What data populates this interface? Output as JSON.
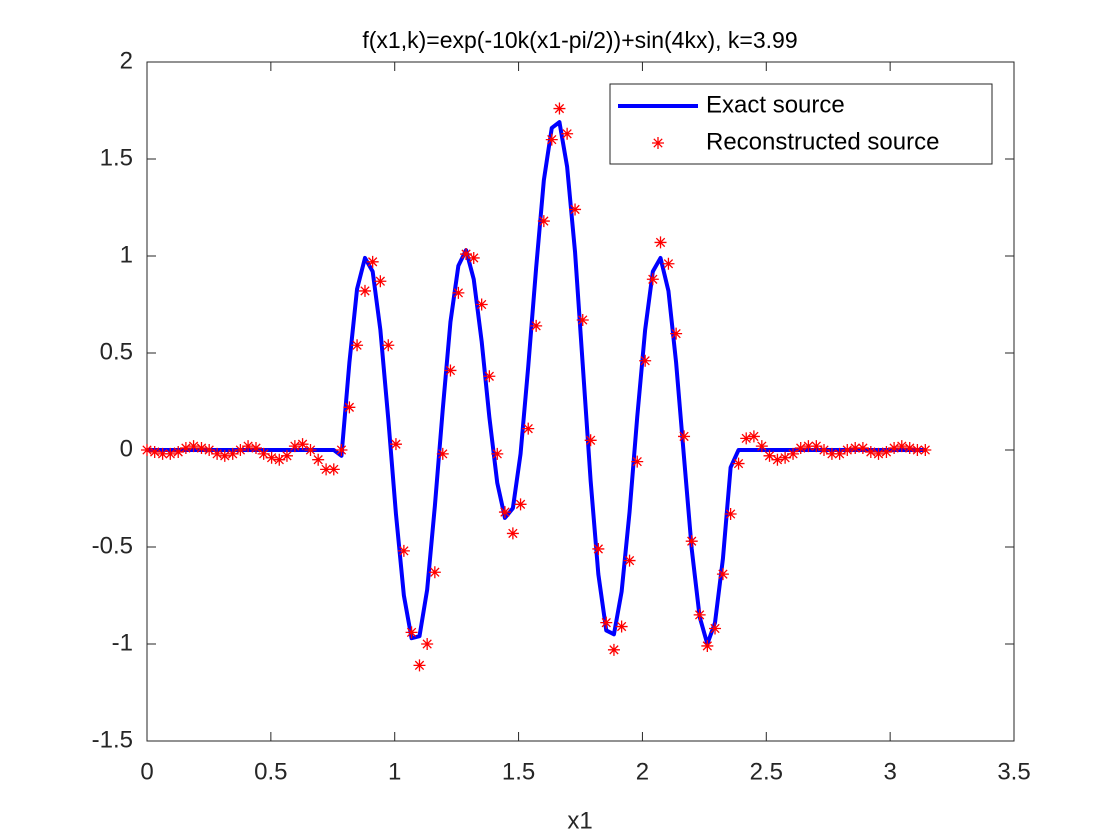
{
  "chart_data": {
    "type": "line",
    "title": "f(x1,k)=exp(-10k(x1-pi/2))+sin(4kx),   k=3.99",
    "x_label": "x1",
    "xlim": [
      0,
      3.5
    ],
    "xticks": [
      0,
      0.5,
      1,
      1.5,
      2,
      2.5,
      3,
      3.5
    ],
    "ylim": [
      -1.5,
      2
    ],
    "yticks": [
      -1.5,
      -1,
      -0.5,
      0,
      0.5,
      1,
      1.5,
      2
    ],
    "grid": false,
    "legend_position": "top-right",
    "series": [
      {
        "name": "Exact source",
        "color": "#0000ff",
        "style": "line",
        "x": [
          0,
          0.754,
          0.785,
          0.817,
          0.848,
          0.88,
          0.911,
          0.942,
          0.974,
          1.005,
          1.037,
          1.068,
          1.1,
          1.131,
          1.162,
          1.194,
          1.225,
          1.257,
          1.288,
          1.319,
          1.351,
          1.382,
          1.414,
          1.445,
          1.477,
          1.508,
          1.539,
          1.571,
          1.602,
          1.634,
          1.665,
          1.696,
          1.728,
          1.759,
          1.791,
          1.822,
          1.854,
          1.885,
          1.916,
          1.948,
          1.979,
          2.011,
          2.042,
          2.073,
          2.105,
          2.136,
          2.168,
          2.199,
          2.231,
          2.262,
          2.293,
          2.325,
          2.356,
          2.388,
          3.142
        ],
        "values": [
          0,
          0,
          -0.03,
          0.45,
          0.83,
          0.99,
          0.92,
          0.62,
          0.16,
          -0.33,
          -0.75,
          -0.97,
          -0.96,
          -0.72,
          -0.29,
          0.21,
          0.66,
          0.95,
          1.03,
          0.88,
          0.56,
          0.17,
          -0.17,
          -0.35,
          -0.3,
          -0.02,
          0.43,
          0.94,
          1.39,
          1.66,
          1.69,
          1.46,
          1.02,
          0.44,
          -0.16,
          -0.64,
          -0.93,
          -0.95,
          -0.73,
          -0.32,
          0.17,
          0.62,
          0.92,
          0.99,
          0.82,
          0.45,
          -0.04,
          -0.51,
          -0.86,
          -1.0,
          -0.89,
          -0.56,
          -0.09,
          0,
          0
        ]
      },
      {
        "name": "Reconstructed source",
        "color": "#ff0000",
        "style": "markers",
        "x": [
          0,
          0.031,
          0.063,
          0.094,
          0.126,
          0.157,
          0.188,
          0.22,
          0.251,
          0.283,
          0.314,
          0.346,
          0.377,
          0.408,
          0.44,
          0.471,
          0.503,
          0.534,
          0.565,
          0.597,
          0.628,
          0.66,
          0.691,
          0.723,
          0.754,
          0.785,
          0.817,
          0.848,
          0.88,
          0.911,
          0.942,
          0.974,
          1.005,
          1.037,
          1.068,
          1.1,
          1.131,
          1.162,
          1.194,
          1.225,
          1.257,
          1.288,
          1.319,
          1.351,
          1.382,
          1.414,
          1.445,
          1.477,
          1.508,
          1.539,
          1.571,
          1.602,
          1.634,
          1.665,
          1.696,
          1.728,
          1.759,
          1.791,
          1.822,
          1.854,
          1.885,
          1.916,
          1.948,
          1.979,
          2.011,
          2.042,
          2.073,
          2.105,
          2.136,
          2.168,
          2.199,
          2.231,
          2.262,
          2.293,
          2.325,
          2.356,
          2.388,
          2.419,
          2.45,
          2.482,
          2.513,
          2.545,
          2.576,
          2.608,
          2.639,
          2.67,
          2.702,
          2.733,
          2.765,
          2.796,
          2.827,
          2.859,
          2.89,
          2.922,
          2.953,
          2.985,
          3.016,
          3.047,
          3.079,
          3.11,
          3.142
        ],
        "values": [
          0,
          -0.01,
          -0.02,
          -0.02,
          -0.01,
          0.01,
          0.02,
          0.01,
          0,
          -0.02,
          -0.03,
          -0.02,
          0,
          0.02,
          0.01,
          -0.02,
          -0.04,
          -0.05,
          -0.03,
          0.02,
          0.03,
          0,
          -0.05,
          -0.1,
          -0.1,
          0,
          0.22,
          0.54,
          0.82,
          0.97,
          0.87,
          0.54,
          0.03,
          -0.52,
          -0.94,
          -1.11,
          -1.0,
          -0.63,
          -0.02,
          0.41,
          0.81,
          1.01,
          0.99,
          0.75,
          0.38,
          -0.02,
          -0.32,
          -0.43,
          -0.28,
          0.11,
          0.64,
          1.18,
          1.6,
          1.76,
          1.63,
          1.24,
          0.67,
          0.05,
          -0.51,
          -0.89,
          -1.03,
          -0.91,
          -0.57,
          -0.06,
          0.46,
          0.88,
          1.07,
          0.96,
          0.6,
          0.07,
          -0.47,
          -0.85,
          -1.01,
          -0.92,
          -0.64,
          -0.33,
          -0.07,
          0.06,
          0.07,
          0.02,
          -0.03,
          -0.05,
          -0.04,
          -0.02,
          0.01,
          0.02,
          0.02,
          0,
          -0.02,
          -0.02,
          0,
          0.01,
          0.01,
          -0.01,
          -0.02,
          -0.01,
          0.01,
          0.02,
          0.01,
          0,
          0
        ]
      }
    ]
  }
}
